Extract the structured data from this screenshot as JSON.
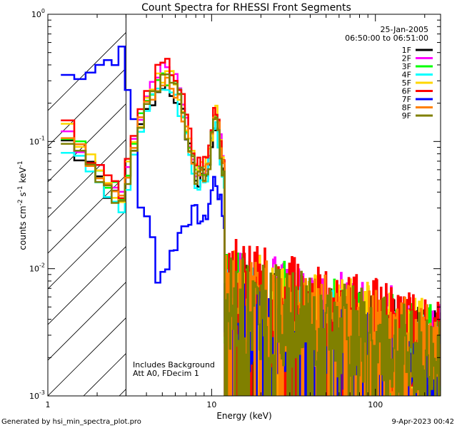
{
  "footer": {
    "generated_by": "Generated by hsi_min_spectra_plot.pro",
    "timestamp": "9-Apr-2023 00:42"
  },
  "chart_data": {
    "type": "line",
    "title": "Count Spectra for RHESSI Front Segments",
    "xlabel": "Energy (keV)",
    "ylabel_html": "counts cm<tspan dy='-5' font-size='9'>-2</tspan><tspan dy='5'> s</tspan><tspan dy='-5' font-size='9'>-1</tspan><tspan dy='5'> keV</tspan><tspan dy='-5' font-size='9'>-1</tspan>",
    "x_scale": "log",
    "y_scale": "log",
    "xlim": [
      1.0,
      250.0
    ],
    "ylim": [
      0.001,
      1.0
    ],
    "x_ticks": [
      1,
      10,
      100
    ],
    "y_ticks": [
      0.001,
      0.01,
      0.1,
      1.0
    ],
    "y_tick_labels": {
      "0.001": [
        "10",
        "-3"
      ],
      "0.01": [
        "10",
        "-2"
      ],
      "0.1": [
        "10",
        "-1"
      ],
      "1.0": [
        "10",
        "0"
      ]
    },
    "date": "25-Jan-2005",
    "time_range": "06:50:00 to 06:51:00",
    "legend_position": "top-right",
    "annotations": [
      "Includes Background",
      "Att A0, FDecim 1"
    ],
    "shaded_region": {
      "x_start": 1.0,
      "x_end": 3.0,
      "style": "diagonal-hatch"
    },
    "series": [
      {
        "name": "1F",
        "color": "#000000",
        "seed": 1,
        "scale": 1.0
      },
      {
        "name": "2F",
        "color": "#ff00ff",
        "seed": 2,
        "scale": 1.25
      },
      {
        "name": "3F",
        "color": "#00ff00",
        "seed": 3,
        "scale": 1.15
      },
      {
        "name": "4F",
        "color": "#00ffff",
        "seed": 4,
        "scale": 0.95
      },
      {
        "name": "5F",
        "color": "#ffd700",
        "seed": 5,
        "scale": 1.2
      },
      {
        "name": "6F",
        "color": "#ff0000",
        "seed": 6,
        "scale": 1.35
      },
      {
        "name": "7F",
        "color": "#0000ff",
        "seed": 7,
        "scale": 0.9,
        "special": true
      },
      {
        "name": "8F",
        "color": "#ff7f00",
        "seed": 8,
        "scale": 1.1
      },
      {
        "name": "9F",
        "color": "#808000",
        "seed": 9,
        "scale": 1.05
      }
    ]
  }
}
